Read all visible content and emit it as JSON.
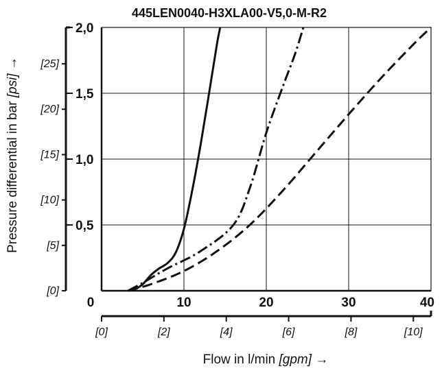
{
  "chart_data": {
    "type": "line",
    "title": "445LEN0040-H3XLA00-V5,0-M-R2",
    "xlabel": {
      "text": "Flow in l/min",
      "unit": "[gpm]",
      "arrow": "→"
    },
    "ylabel": {
      "text": "Pressure differential in bar",
      "unit": "[psi]",
      "arrow": "→"
    },
    "xlim": [
      0,
      40
    ],
    "ylim": [
      0,
      2.0
    ],
    "x_ticks": [
      {
        "value": 0,
        "label": "0"
      },
      {
        "value": 10,
        "label": "10"
      },
      {
        "value": 20,
        "label": "20"
      },
      {
        "value": 30,
        "label": "30"
      },
      {
        "value": 40,
        "label": "40"
      }
    ],
    "y_ticks": [
      {
        "value": 0.5,
        "label": "0,5"
      },
      {
        "value": 1.0,
        "label": "1,0"
      },
      {
        "value": 1.5,
        "label": "1,5"
      },
      {
        "value": 2.0,
        "label": "2,0"
      }
    ],
    "psi_ticks": [
      {
        "value": 0,
        "label": "[0]"
      },
      {
        "value": 5,
        "label": "[5]"
      },
      {
        "value": 10,
        "label": "[10]"
      },
      {
        "value": 15,
        "label": "[15]"
      },
      {
        "value": 20,
        "label": "[20]"
      },
      {
        "value": 25,
        "label": "[25]"
      }
    ],
    "gpm_ticks": [
      {
        "value": 0,
        "label": "[0]"
      },
      {
        "value": 2,
        "label": "[2]"
      },
      {
        "value": 4,
        "label": "[4]"
      },
      {
        "value": 6,
        "label": "[6]"
      },
      {
        "value": 8,
        "label": "[8]"
      },
      {
        "value": 10,
        "label": "[10]"
      }
    ],
    "grid": true,
    "series": [
      {
        "style": "solid",
        "x": [
          3.2,
          4.0,
          5.0,
          6.0,
          7.0,
          8.0,
          9.0,
          10.0,
          11.0,
          12.0,
          13.0,
          14.0,
          14.4
        ],
        "y": [
          0.0,
          0.01,
          0.05,
          0.12,
          0.17,
          0.21,
          0.29,
          0.47,
          0.76,
          1.1,
          1.48,
          1.87,
          2.0
        ]
      },
      {
        "style": "dash-dot",
        "x": [
          3.2,
          5.0,
          8.0,
          12.0,
          16.0,
          18.0,
          20.0,
          22.0,
          23.5,
          24.5
        ],
        "y": [
          0.0,
          0.06,
          0.17,
          0.3,
          0.5,
          0.78,
          1.2,
          1.55,
          1.8,
          2.0
        ]
      },
      {
        "style": "dashed",
        "x": [
          3.2,
          6.0,
          10.0,
          14.0,
          18.0,
          22.0,
          26.0,
          30.0,
          34.0,
          38.0,
          40.0
        ],
        "y": [
          0.0,
          0.05,
          0.15,
          0.3,
          0.5,
          0.76,
          1.05,
          1.34,
          1.62,
          1.88,
          2.0
        ]
      }
    ]
  }
}
